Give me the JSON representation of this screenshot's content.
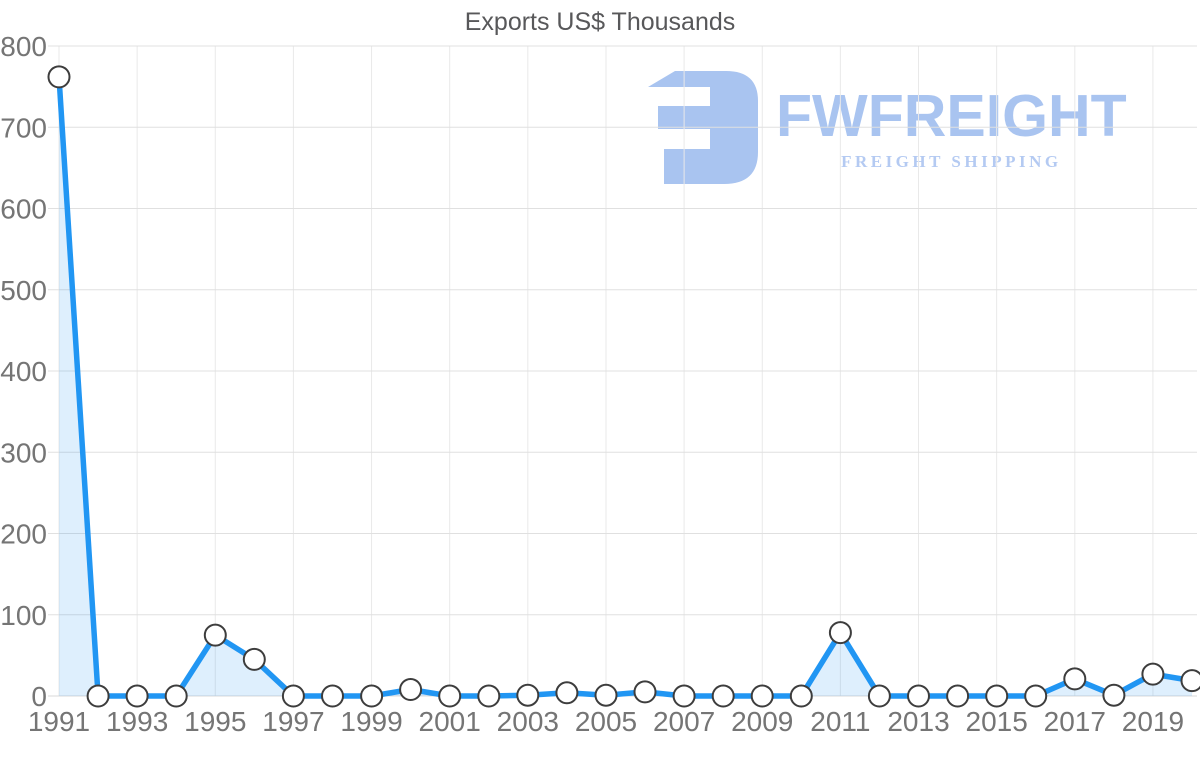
{
  "page": {
    "title": "Exports US$ Thousands"
  },
  "logo": {
    "brand": "FWFREIGHT",
    "tagline": "FREIGHT SHIPPING",
    "mark_icon": "stylized-f-freight-mark"
  },
  "colors": {
    "line": "#2196f3",
    "area_fill": "rgba(33,150,243,0.15)",
    "marker_fill": "#ffffff",
    "marker_stroke": "#3d3d3d",
    "grid_h": "#e0e0e0",
    "grid_v": "#e9e9e9",
    "axis_zero_line": "#d9d9d9",
    "axis_text": "#757575",
    "title_text": "#58585a",
    "logo_blue": "#a9c4f0",
    "logo_tagline_blue": "#b4caf2"
  },
  "chart_data": {
    "type": "area",
    "title": "Exports US$ Thousands",
    "x": [
      1991,
      1992,
      1993,
      1994,
      1995,
      1996,
      1997,
      1998,
      1999,
      2000,
      2001,
      2002,
      2003,
      2004,
      2005,
      2006,
      2007,
      2008,
      2009,
      2010,
      2011,
      2012,
      2013,
      2014,
      2015,
      2016,
      2017,
      2018,
      2019,
      2020
    ],
    "values": [
      762,
      0,
      0,
      0,
      75,
      45,
      0,
      0,
      0,
      8,
      0,
      0,
      1,
      4,
      1,
      5,
      0,
      0,
      0,
      0,
      78,
      0,
      0,
      0,
      0,
      0,
      21,
      1,
      27,
      19
    ],
    "ylim": [
      0,
      800
    ],
    "yticks": [
      0,
      100,
      200,
      300,
      400,
      500,
      600,
      700,
      800
    ],
    "xticks": [
      1991,
      1993,
      1995,
      1997,
      1999,
      2001,
      2003,
      2005,
      2007,
      2009,
      2011,
      2013,
      2015,
      2017,
      2019
    ],
    "xlabel": "",
    "ylabel": "",
    "grid": true,
    "markers": true,
    "legend": "none"
  }
}
